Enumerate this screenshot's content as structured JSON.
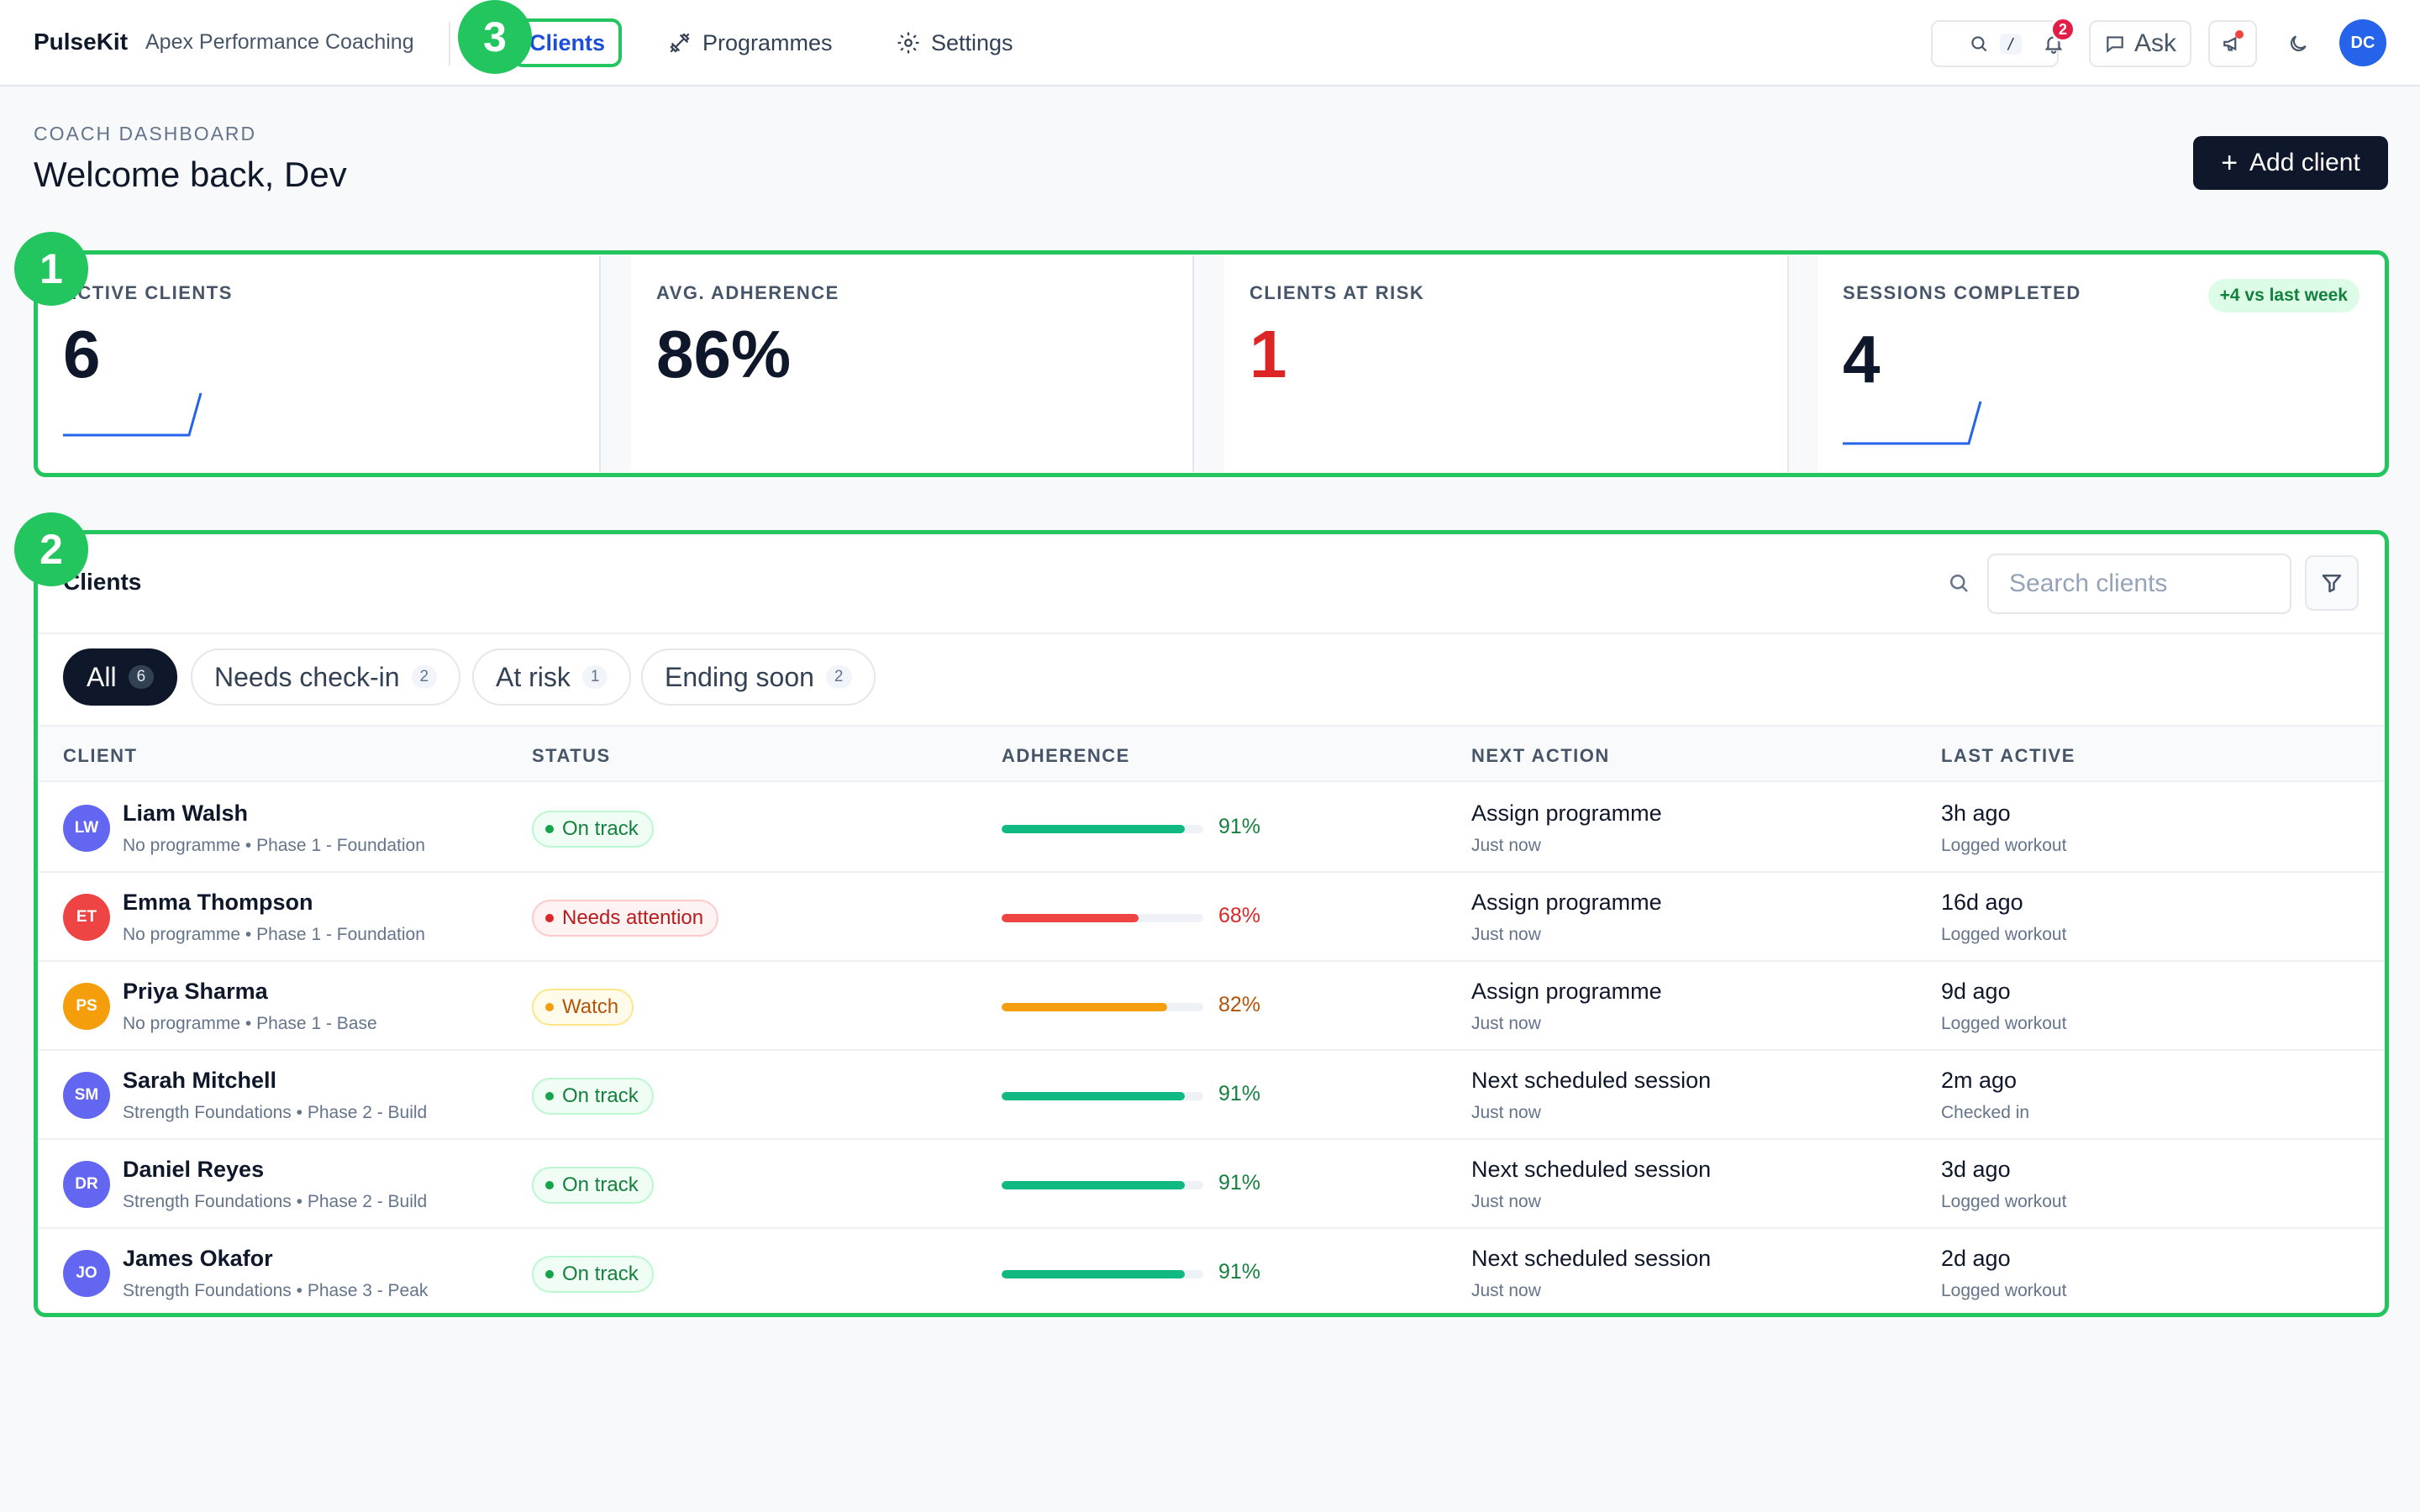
{
  "nav": {
    "brand": "PulseKit",
    "org": "Apex Performance Coaching",
    "items": [
      {
        "label": "Clients",
        "icon": "users-icon",
        "active": true
      },
      {
        "label": "Programmes",
        "icon": "dumbbell-icon",
        "active": false
      },
      {
        "label": "Settings",
        "icon": "gear-icon",
        "active": false
      }
    ],
    "search_shortcut": "/",
    "notifications_count": "2",
    "ask_label": "Ask",
    "user_initials": "DC"
  },
  "header": {
    "eyebrow": "COACH DASHBOARD",
    "welcome": "Welcome back, Dev",
    "add_client": "Add client"
  },
  "annotations": [
    "1",
    "2",
    "3"
  ],
  "stats": [
    {
      "label": "ACTIVE CLIENTS",
      "value": "6"
    },
    {
      "label": "AVG. ADHERENCE",
      "value": "86%"
    },
    {
      "label": "CLIENTS AT RISK",
      "value": "1",
      "color": "#dc2626"
    },
    {
      "label": "SESSIONS COMPLETED",
      "value": "4",
      "delta": "+4 vs last week"
    }
  ],
  "clients_panel": {
    "title": "Clients",
    "search_placeholder": "Search clients",
    "filters": [
      {
        "label": "All",
        "count": "6",
        "active": true
      },
      {
        "label": "Needs check-in",
        "count": "2",
        "active": false
      },
      {
        "label": "At risk",
        "count": "1",
        "active": false
      },
      {
        "label": "Ending soon",
        "count": "2",
        "active": false
      }
    ],
    "columns": [
      "CLIENT",
      "STATUS",
      "ADHERENCE",
      "NEXT ACTION",
      "LAST ACTIVE"
    ],
    "rows": [
      {
        "initials": "LW",
        "avatar_color": "#6366f1",
        "name": "Liam Walsh",
        "sub": "No programme • Phase 1 - Foundation",
        "status": "On track",
        "status_kind": "ok",
        "adherence": 91,
        "adherence_label": "91%",
        "next_action": "Assign programme",
        "next_when": "Just now",
        "last_active": "3h ago",
        "last_detail": "Logged workout"
      },
      {
        "initials": "ET",
        "avatar_color": "#ef4444",
        "name": "Emma Thompson",
        "sub": "No programme • Phase 1 - Foundation",
        "status": "Needs attention",
        "status_kind": "bad",
        "adherence": 68,
        "adherence_label": "68%",
        "next_action": "Assign programme",
        "next_when": "Just now",
        "last_active": "16d ago",
        "last_detail": "Logged workout"
      },
      {
        "initials": "PS",
        "avatar_color": "#f59e0b",
        "name": "Priya Sharma",
        "sub": "No programme • Phase 1 - Base",
        "status": "Watch",
        "status_kind": "warn",
        "adherence": 82,
        "adherence_label": "82%",
        "next_action": "Assign programme",
        "next_when": "Just now",
        "last_active": "9d ago",
        "last_detail": "Logged workout"
      },
      {
        "initials": "SM",
        "avatar_color": "#6366f1",
        "name": "Sarah Mitchell",
        "sub": "Strength Foundations • Phase 2 - Build",
        "status": "On track",
        "status_kind": "ok",
        "adherence": 91,
        "adherence_label": "91%",
        "next_action": "Next scheduled session",
        "next_when": "Just now",
        "last_active": "2m ago",
        "last_detail": "Checked in"
      },
      {
        "initials": "DR",
        "avatar_color": "#6366f1",
        "name": "Daniel Reyes",
        "sub": "Strength Foundations • Phase 2 - Build",
        "status": "On track",
        "status_kind": "ok",
        "adherence": 91,
        "adherence_label": "91%",
        "next_action": "Next scheduled session",
        "next_when": "Just now",
        "last_active": "3d ago",
        "last_detail": "Logged workout"
      },
      {
        "initials": "JO",
        "avatar_color": "#6366f1",
        "name": "James Okafor",
        "sub": "Strength Foundations • Phase 3 - Peak",
        "status": "On track",
        "status_kind": "ok",
        "adherence": 91,
        "adherence_label": "91%",
        "next_action": "Next scheduled session",
        "next_when": "Just now",
        "last_active": "2d ago",
        "last_detail": "Logged workout"
      }
    ]
  },
  "colors": {
    "ok": "#10b981",
    "bad": "#ef4444",
    "warn": "#f59e0b",
    "accent": "#22c55e",
    "primary": "#0f172a"
  }
}
